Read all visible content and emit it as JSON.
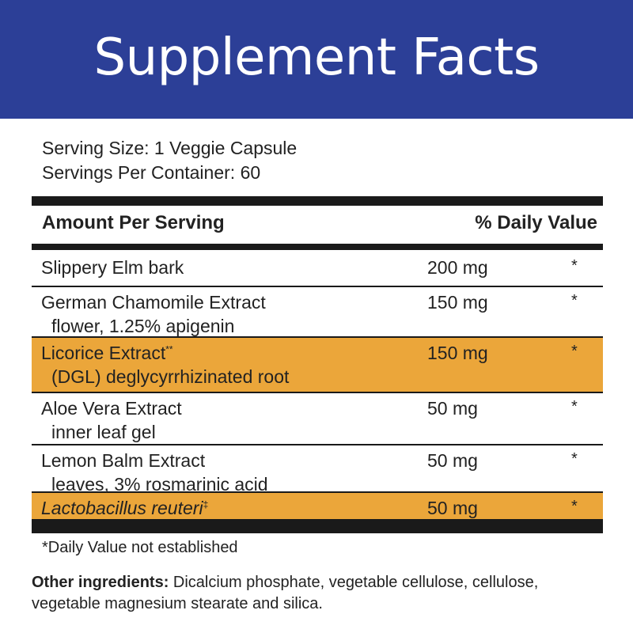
{
  "colors": {
    "banner": "#2c3f97",
    "highlight": "#eba63a",
    "rule": "#1a1a1a"
  },
  "banner": {
    "title": "Supplement Facts"
  },
  "serving": {
    "size": "Serving Size: 1 Veggie Capsule",
    "per_container": "Servings Per Container: 60"
  },
  "table": {
    "header_left": "Amount Per Serving",
    "header_right": "% Daily Value",
    "rows": [
      {
        "name": "Slippery Elm bark",
        "sub": "",
        "mark": "",
        "amount": "200 mg",
        "dv": "*",
        "highlight": false,
        "italic": false
      },
      {
        "name": "German Chamomile Extract",
        "sub": "flower, 1.25% apigenin",
        "mark": "",
        "amount": "150 mg",
        "dv": "*",
        "highlight": false,
        "italic": false
      },
      {
        "name": "Licorice Extract",
        "sub": "(DGL) deglycyrrhizinated root",
        "mark": "**",
        "amount": "150 mg",
        "dv": "*",
        "highlight": true,
        "italic": false
      },
      {
        "name": "Aloe Vera Extract",
        "sub": "inner leaf gel",
        "mark": "",
        "amount": "50 mg",
        "dv": "*",
        "highlight": false,
        "italic": false
      },
      {
        "name": "Lemon Balm Extract",
        "sub": "leaves, 3% rosmarinic acid",
        "mark": "",
        "amount": "50 mg",
        "dv": "*",
        "highlight": false,
        "italic": false
      },
      {
        "name": "Lactobacillus reuteri",
        "sub": "",
        "mark": "‡",
        "amount": "50 mg",
        "dv": "*",
        "highlight": true,
        "italic": true
      }
    ]
  },
  "footnote": "*Daily Value not established",
  "other_ingredients": {
    "label": "Other ingredients:",
    "text": "Dicalcium phosphate, vegetable cellulose, cellulose, vegetable magnesium stearate and silica."
  }
}
